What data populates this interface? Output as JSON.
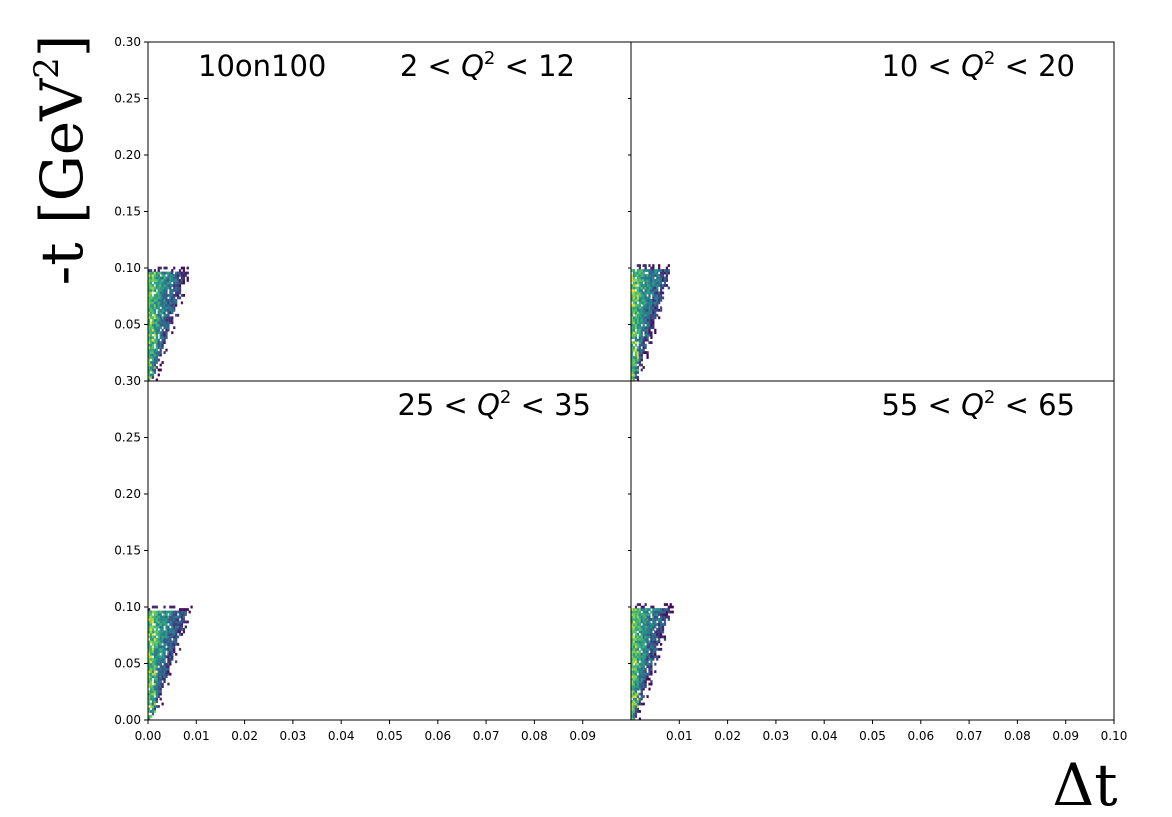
{
  "figure": {
    "ylabel": "-t [GeV",
    "ylabel_sup": "2",
    "ylabel_close": "]",
    "xlabel": "Δt",
    "dataset_label": "10on100"
  },
  "chart_data": {
    "type": "heatmap",
    "grid": false,
    "colormap": "viridis",
    "colors": {
      "low": "#440154",
      "mid": "#21918c",
      "high": "#fde725",
      "frame": "#000000"
    },
    "xlabel": "Δt",
    "ylabel": "-t [GeV²]",
    "shared_axes": true,
    "yticks": [
      "0.00",
      "0.05",
      "0.10",
      "0.15",
      "0.20",
      "0.25",
      "0.30"
    ],
    "xticks_left": [
      "0.00",
      "0.01",
      "0.02",
      "0.03",
      "0.04",
      "0.05",
      "0.06",
      "0.07",
      "0.08",
      "0.09"
    ],
    "xticks_right": [
      "0.01",
      "0.02",
      "0.03",
      "0.04",
      "0.05",
      "0.06",
      "0.07",
      "0.08",
      "0.09",
      "0.10"
    ],
    "panels": [
      {
        "label_pre": "2 < ",
        "label_post": " < 12",
        "xlim": [
          0,
          0.1
        ],
        "ylim": [
          0,
          0.3
        ],
        "density_envelope": {
          "y_max": 0.095,
          "dt_max_at_ymax": 0.0078,
          "dt_max_at_y0": 0.0008
        }
      },
      {
        "label_pre": "10 < ",
        "label_post": " < 20",
        "xlim": [
          0,
          0.1
        ],
        "ylim": [
          0,
          0.3
        ],
        "density_envelope": {
          "y_max": 0.097,
          "dt_max_at_ymax": 0.0078,
          "dt_max_at_y0": 0.0008
        }
      },
      {
        "label_pre": "25 < ",
        "label_post": " < 35",
        "xlim": [
          0,
          0.1
        ],
        "ylim": [
          0,
          0.3
        ],
        "density_envelope": {
          "y_max": 0.095,
          "dt_max_at_ymax": 0.008,
          "dt_max_at_y0": 0.0008
        }
      },
      {
        "label_pre": "55 < ",
        "label_post": " < 65",
        "xlim": [
          0,
          0.1
        ],
        "ylim": [
          0,
          0.3
        ],
        "density_envelope": {
          "y_max": 0.097,
          "dt_max_at_ymax": 0.0078,
          "dt_max_at_y0": 0.0008
        }
      }
    ]
  }
}
